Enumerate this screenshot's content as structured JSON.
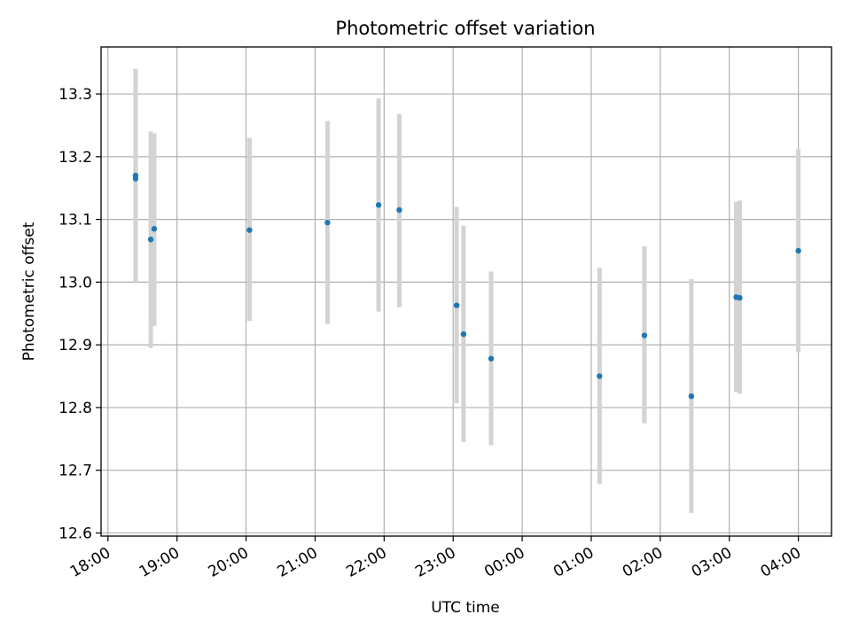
{
  "chart_data": {
    "type": "scatter",
    "title": "Photometric offset variation",
    "xlabel": "UTC time",
    "ylabel": "Photometric offset",
    "x_tick_labels": [
      "18:00",
      "19:00",
      "20:00",
      "21:00",
      "22:00",
      "23:00",
      "00:00",
      "01:00",
      "02:00",
      "03:00",
      "04:00"
    ],
    "x_tick_values": [
      18,
      19,
      20,
      21,
      22,
      23,
      24,
      25,
      26,
      27,
      28
    ],
    "xlim": [
      17.9,
      28.48
    ],
    "ylim": [
      12.595,
      13.375
    ],
    "y_ticks": [
      12.6,
      12.7,
      12.8,
      12.9,
      13.0,
      13.1,
      13.2,
      13.3
    ],
    "y_tick_labels": [
      "12.6",
      "12.7",
      "12.8",
      "12.9",
      "13.0",
      "13.1",
      "13.2",
      "13.3"
    ],
    "grid": true,
    "colors": {
      "marker": "#1f77b4",
      "errorbar": "#d3d3d3",
      "grid": "#b0b0b0"
    },
    "points": [
      {
        "x": 18.4,
        "y": 13.165,
        "yerr_low": 13.0,
        "yerr_high": 13.34
      },
      {
        "x": 18.4,
        "y": 13.17,
        "yerr_low": 13.0,
        "yerr_high": 13.34
      },
      {
        "x": 18.62,
        "y": 13.068,
        "yerr_low": 12.895,
        "yerr_high": 13.24
      },
      {
        "x": 18.67,
        "y": 13.085,
        "yerr_low": 12.93,
        "yerr_high": 13.237
      },
      {
        "x": 20.05,
        "y": 13.083,
        "yerr_low": 12.938,
        "yerr_high": 13.23
      },
      {
        "x": 21.18,
        "y": 13.095,
        "yerr_low": 12.933,
        "yerr_high": 13.257
      },
      {
        "x": 21.92,
        "y": 13.123,
        "yerr_low": 12.953,
        "yerr_high": 13.293
      },
      {
        "x": 22.22,
        "y": 13.115,
        "yerr_low": 12.96,
        "yerr_high": 13.268
      },
      {
        "x": 23.05,
        "y": 12.963,
        "yerr_low": 12.807,
        "yerr_high": 13.12
      },
      {
        "x": 23.15,
        "y": 12.917,
        "yerr_low": 12.745,
        "yerr_high": 13.09
      },
      {
        "x": 23.55,
        "y": 12.878,
        "yerr_low": 12.74,
        "yerr_high": 13.017
      },
      {
        "x": 25.12,
        "y": 12.85,
        "yerr_low": 12.678,
        "yerr_high": 13.023
      },
      {
        "x": 25.77,
        "y": 12.915,
        "yerr_low": 12.775,
        "yerr_high": 13.057
      },
      {
        "x": 26.45,
        "y": 12.818,
        "yerr_low": 12.632,
        "yerr_high": 13.005
      },
      {
        "x": 27.1,
        "y": 12.976,
        "yerr_low": 12.825,
        "yerr_high": 13.128
      },
      {
        "x": 27.15,
        "y": 12.975,
        "yerr_low": 12.822,
        "yerr_high": 13.13
      },
      {
        "x": 28.0,
        "y": 13.05,
        "yerr_low": 12.888,
        "yerr_high": 13.212
      }
    ]
  }
}
